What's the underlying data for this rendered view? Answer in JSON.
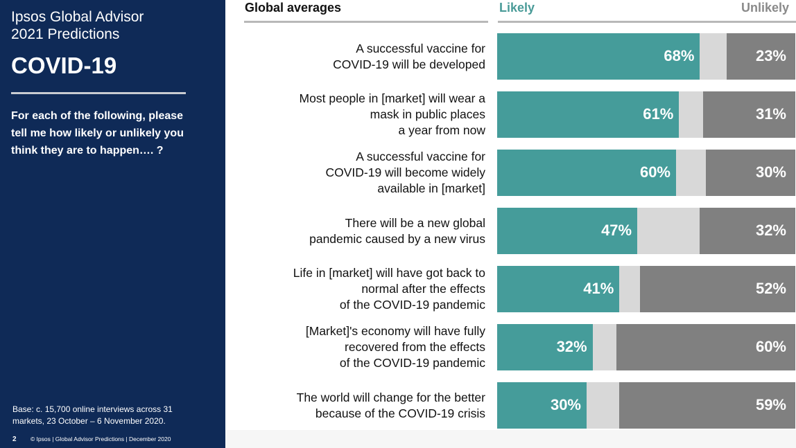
{
  "sidebar": {
    "brand_line1": "Ipsos Global Advisor",
    "brand_line2": "2021 Predictions",
    "heading": "COVID-19",
    "question": "For each of the following, please tell me how likely or unlikely you think they are to happen…. ?",
    "base_line1": "Base: c. 15,700 online interviews across 31",
    "base_line2": "markets,  23 October – 6 November 2020.",
    "page_number": "2",
    "footer_text": "© Ipsos | Global Advisor Predictions | December 2020",
    "background_color": "#0f2a57"
  },
  "chart_data": {
    "type": "bar",
    "orientation": "horizontal-stacked",
    "title": "Global averages",
    "series": [
      {
        "name": "Likely",
        "color": "#459c9a",
        "values": [
          68,
          61,
          60,
          47,
          41,
          32,
          30
        ]
      },
      {
        "name": "Unlikely",
        "color": "#808080",
        "values": [
          23,
          31,
          30,
          32,
          52,
          60,
          59
        ]
      }
    ],
    "remainder_color": "#d8d8d8",
    "categories": [
      {
        "lines": [
          "A successful vaccine for",
          "COVID-19 will be developed"
        ]
      },
      {
        "lines": [
          "Most people in [market] will wear a",
          "mask in public places",
          "a year from now"
        ]
      },
      {
        "lines": [
          "A successful vaccine for",
          "COVID-19 will become widely",
          "available in [market]"
        ]
      },
      {
        "lines": [
          "There will be a new global",
          "pandemic caused by a new virus"
        ]
      },
      {
        "lines": [
          "Life in [market] will have got back to",
          "normal after the effects",
          "of the COVID-19 pandemic"
        ]
      },
      {
        "lines": [
          "[Market]'s economy will have fully",
          "recovered from the effects",
          "of the COVID-19 pandemic"
        ]
      },
      {
        "lines": [
          "The world will change for the better",
          "because of the COVID-19 crisis"
        ]
      }
    ],
    "value_labels": {
      "likely": [
        "68%",
        "61%",
        "60%",
        "47%",
        "41%",
        "32%",
        "30%"
      ],
      "unlikely": [
        "23%",
        "31%",
        "30%",
        "32%",
        "52%",
        "60%",
        "59%"
      ]
    },
    "xlim": [
      0,
      100
    ]
  }
}
